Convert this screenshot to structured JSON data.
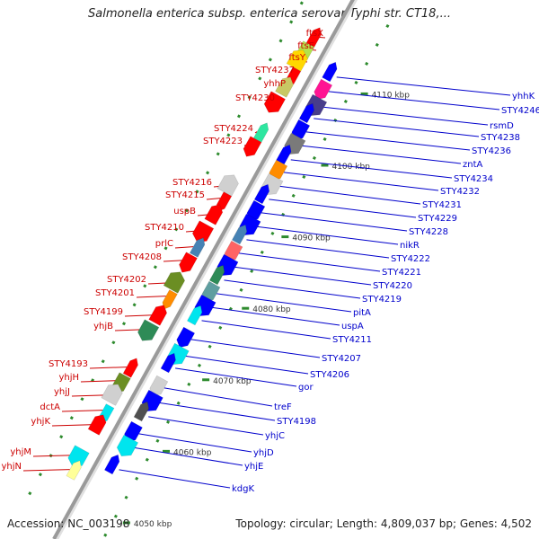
{
  "title": "Salmonella enterica subsp. enterica serovar Typhi str. CT18,...",
  "accession": "Accession: NC_003198",
  "summary": "Topology: circular; Length: 4,809,037 bp; Genes: 4,502",
  "colors": {
    "left_label": "#cc0000",
    "right_label": "#0000cc",
    "backbone": "#9a9a9a",
    "tick": "#2e8b2e"
  },
  "ticks": [
    "4050 kbp",
    "4060 kbp",
    "4070 kbp",
    "4080 kbp",
    "4090 kbp",
    "4100 kbp",
    "4110 kbp"
  ],
  "left_genes": [
    "ftsX",
    "ftsE",
    "ftsY",
    "STY4237",
    "yhhP",
    "STY4230",
    "STY4224",
    "STY4223",
    "STY4216",
    "STY4215",
    "uspB",
    "STY4210",
    "prlC",
    "STY4208",
    "STY4202",
    "STY4201",
    "STY4199",
    "yhjB",
    "STY4193",
    "yhjH",
    "yhjJ",
    "dctA",
    "yhjK",
    "yhjM",
    "yhjN"
  ],
  "right_genes": [
    "yhhK",
    "STY4246",
    "rsmD",
    "STY4238",
    "STY4236",
    "zntA",
    "STY4234",
    "STY4232",
    "STY4231",
    "STY4229",
    "STY4228",
    "nikR",
    "STY4222",
    "STY4221",
    "STY4220",
    "STY4219",
    "pitA",
    "uspA",
    "STY4211",
    "STY4207",
    "STY4206",
    "gor",
    "treF",
    "STY4198",
    "yhjC",
    "yhjD",
    "yhjE",
    "kdgK"
  ]
}
